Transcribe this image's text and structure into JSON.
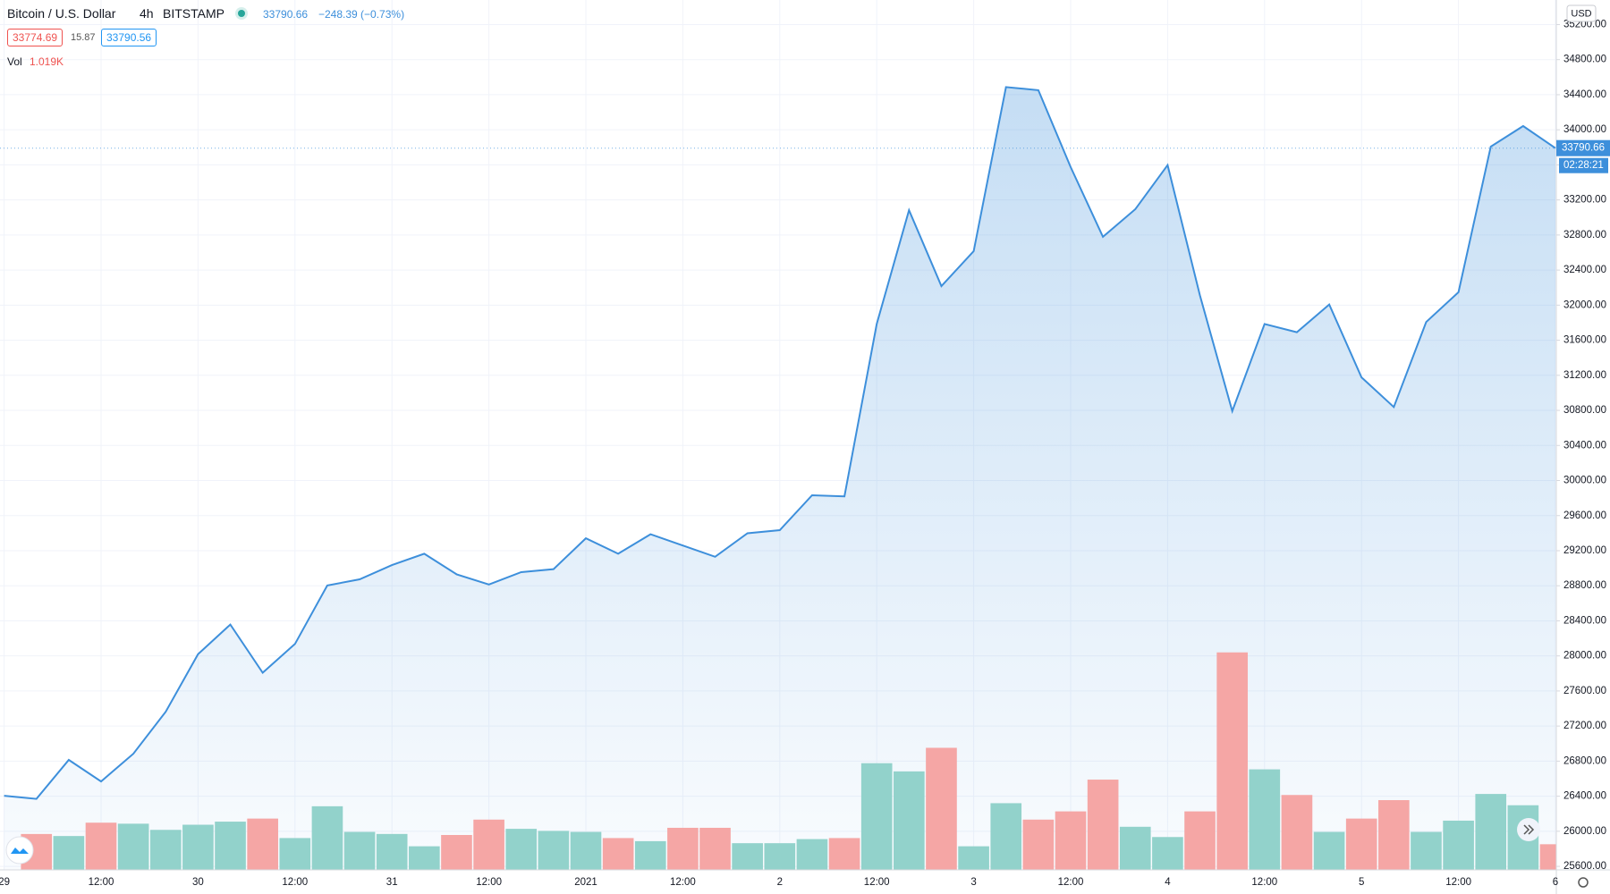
{
  "header": {
    "symbol": "Bitcoin / U.S. Dollar",
    "interval": "4h",
    "exchange": "BITSTAMP",
    "last": "33790.66",
    "change": "−248.39 (−0.73%)",
    "bid": "33774.69",
    "spread": "15.87",
    "ask": "33790.56",
    "currency": "USD",
    "countdown": "02:28:21"
  },
  "chart_data": {
    "type": "area",
    "categories": [
      "29",
      null,
      null,
      "12:00",
      null,
      null,
      "30",
      null,
      null,
      "12:00",
      null,
      null,
      "31",
      null,
      null,
      "12:00",
      null,
      null,
      "2021",
      null,
      null,
      "12:00",
      null,
      null,
      "2",
      null,
      null,
      "12:00",
      null,
      null,
      "3",
      null,
      null,
      "12:00",
      null,
      null,
      "4",
      null,
      null,
      "12:00",
      null,
      null,
      "5",
      null,
      null,
      "12:00",
      null,
      null,
      "6"
    ],
    "values": [
      26405,
      26370,
      26814,
      26568,
      26884,
      27364,
      28019,
      28358,
      27808,
      28136,
      28803,
      28873,
      29036,
      29165,
      28931,
      28814,
      28955,
      28990,
      29341,
      29165,
      29387,
      29259,
      29130,
      29399,
      29434,
      29832,
      29820,
      31785,
      33083,
      32218,
      32616,
      34487,
      34451,
      33574,
      32779,
      33094,
      33597,
      32112,
      30791,
      31785,
      31691,
      32007,
      31177,
      30838,
      31808,
      32147,
      33808,
      34042,
      33790.66
    ],
    "color": "#3d8fdb",
    "volume": {
      "name": "Vol",
      "up_color": "#92d2cb",
      "down_color": "#f5a6a5",
      "values": [
        null,
        1427,
        1346,
        1877,
        1836,
        1591,
        1795,
        1918,
        2040,
        1265,
        2530,
        1510,
        1428,
        938,
        1387,
        1999,
        1632,
        1550,
        1510,
        1265,
        1142,
        1673,
        1673,
        1061,
        1061,
        1224,
        1265,
        4243,
        3917,
        4855,
        938,
        2652,
        1999,
        2326,
        3590,
        1714,
        1306,
        2326,
        8650,
        3998,
        2978,
        1510,
        2040,
        2774,
        1510,
        1958,
        3019,
        2570,
        1019
      ],
      "value_labels": [
        null,
        null,
        null,
        null,
        null,
        null,
        null,
        null,
        null,
        null,
        null,
        null,
        null,
        null,
        null,
        null,
        null,
        null,
        null,
        null,
        null,
        null,
        null,
        null,
        null,
        null,
        null,
        null,
        null,
        null,
        null,
        null,
        null,
        null,
        null,
        null,
        null,
        null,
        null,
        null,
        null,
        null,
        null,
        null,
        null,
        null,
        null,
        null,
        "1.019K"
      ]
    },
    "ylim": [
      25560,
      35480
    ],
    "yticks": [
      {
        "value": 25600,
        "label": "25600.00"
      },
      {
        "value": 26000,
        "label": "26000.00"
      },
      {
        "value": 26400,
        "label": "26400.00"
      },
      {
        "value": 26800,
        "label": "26800.00"
      },
      {
        "value": 27200,
        "label": "27200.00"
      },
      {
        "value": 27600,
        "label": "27600.00"
      },
      {
        "value": 28000,
        "label": "28000.00"
      },
      {
        "value": 28400,
        "label": "28400.00"
      },
      {
        "value": 28800,
        "label": "28800.00"
      },
      {
        "value": 29200,
        "label": "29200.00"
      },
      {
        "value": 29600,
        "label": "29600.00"
      },
      {
        "value": 30000,
        "label": "30000.00"
      },
      {
        "value": 30400,
        "label": "30400.00"
      },
      {
        "value": 30800,
        "label": "30800.00"
      },
      {
        "value": 31200,
        "label": "31200.00"
      },
      {
        "value": 31600,
        "label": "31600.00"
      },
      {
        "value": 32000,
        "label": "32000.00"
      },
      {
        "value": 32400,
        "label": "32400.00"
      },
      {
        "value": 32800,
        "label": "32800.00"
      },
      {
        "value": 33200,
        "label": "33200.00"
      },
      {
        "value": 33600,
        "label": "33600.00"
      },
      {
        "value": 34000,
        "label": "34000.00"
      },
      {
        "value": 34400,
        "label": "34400.00"
      },
      {
        "value": 34800,
        "label": "34800.00"
      },
      {
        "value": 35200,
        "label": "35200.00"
      }
    ],
    "grid": true
  }
}
